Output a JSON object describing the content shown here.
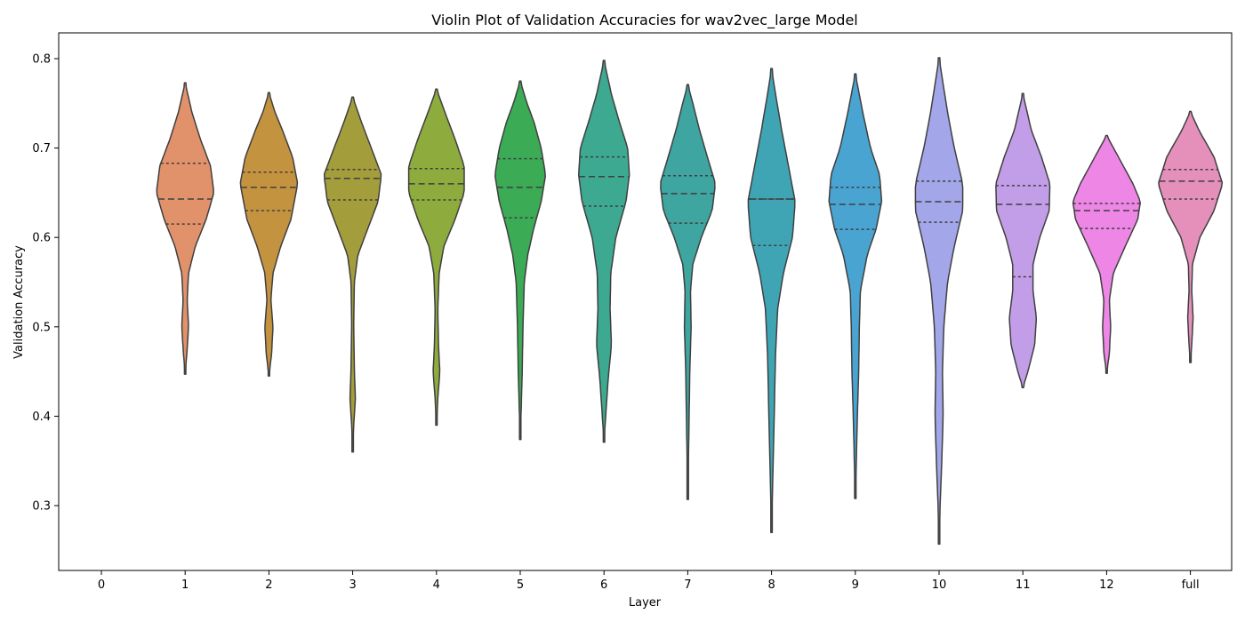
{
  "chart_data": {
    "type": "violin",
    "title": "Violin Plot of Validation Accuracies for wav2vec_large Model",
    "xlabel": "Layer",
    "ylabel": "Validation Accuracy",
    "ylim": [
      0.23,
      0.83
    ],
    "yticks": [
      "0.3",
      "0.4",
      "0.5",
      "0.6",
      "0.7",
      "0.8"
    ],
    "categories": [
      "0",
      "1",
      "2",
      "3",
      "4",
      "5",
      "6",
      "7",
      "8",
      "9",
      "10",
      "11",
      "12",
      "full"
    ],
    "grid": false,
    "legend": "none",
    "inner": "quartile",
    "series": [
      {
        "category": "0",
        "color": "",
        "min": null,
        "max": null,
        "q1": null,
        "median": null,
        "q3": null,
        "peak": null,
        "width": 0,
        "profile": []
      },
      {
        "category": "1",
        "color": "#E1926A",
        "min": 0.447,
        "max": 0.773,
        "q1": 0.615,
        "median": 0.643,
        "q3": 0.683,
        "profile": [
          [
            0.447,
            0.0
          ],
          [
            0.47,
            0.05
          ],
          [
            0.5,
            0.1
          ],
          [
            0.53,
            0.06
          ],
          [
            0.56,
            0.1
          ],
          [
            0.59,
            0.3
          ],
          [
            0.62,
            0.62
          ],
          [
            0.65,
            0.85
          ],
          [
            0.68,
            0.75
          ],
          [
            0.71,
            0.45
          ],
          [
            0.74,
            0.2
          ],
          [
            0.773,
            0.0
          ]
        ]
      },
      {
        "category": "2",
        "color": "#C49340",
        "min": 0.445,
        "max": 0.762,
        "q1": 0.63,
        "median": 0.656,
        "q3": 0.673,
        "profile": [
          [
            0.445,
            0.0
          ],
          [
            0.47,
            0.08
          ],
          [
            0.5,
            0.12
          ],
          [
            0.53,
            0.06
          ],
          [
            0.56,
            0.12
          ],
          [
            0.59,
            0.35
          ],
          [
            0.62,
            0.65
          ],
          [
            0.66,
            0.85
          ],
          [
            0.69,
            0.7
          ],
          [
            0.72,
            0.4
          ],
          [
            0.74,
            0.18
          ],
          [
            0.762,
            0.0
          ]
        ]
      },
      {
        "category": "3",
        "color": "#A39E3B",
        "min": 0.36,
        "max": 0.757,
        "q1": 0.642,
        "median": 0.666,
        "q3": 0.676,
        "profile": [
          [
            0.36,
            0.0
          ],
          [
            0.39,
            0.03
          ],
          [
            0.42,
            0.08
          ],
          [
            0.45,
            0.05
          ],
          [
            0.5,
            0.03
          ],
          [
            0.55,
            0.05
          ],
          [
            0.58,
            0.15
          ],
          [
            0.61,
            0.45
          ],
          [
            0.64,
            0.75
          ],
          [
            0.67,
            0.85
          ],
          [
            0.7,
            0.55
          ],
          [
            0.73,
            0.25
          ],
          [
            0.757,
            0.0
          ]
        ]
      },
      {
        "category": "4",
        "color": "#8EAB3E",
        "min": 0.39,
        "max": 0.766,
        "q1": 0.642,
        "median": 0.66,
        "q3": 0.677,
        "profile": [
          [
            0.39,
            0.0
          ],
          [
            0.42,
            0.04
          ],
          [
            0.45,
            0.1
          ],
          [
            0.48,
            0.06
          ],
          [
            0.52,
            0.04
          ],
          [
            0.56,
            0.08
          ],
          [
            0.59,
            0.22
          ],
          [
            0.62,
            0.55
          ],
          [
            0.65,
            0.82
          ],
          [
            0.68,
            0.82
          ],
          [
            0.71,
            0.55
          ],
          [
            0.74,
            0.25
          ],
          [
            0.766,
            0.0
          ]
        ]
      },
      {
        "category": "5",
        "color": "#3BAB55",
        "min": 0.374,
        "max": 0.775,
        "q1": 0.622,
        "median": 0.656,
        "q3": 0.688,
        "profile": [
          [
            0.374,
            0.0
          ],
          [
            0.41,
            0.03
          ],
          [
            0.45,
            0.06
          ],
          [
            0.5,
            0.08
          ],
          [
            0.55,
            0.12
          ],
          [
            0.58,
            0.22
          ],
          [
            0.61,
            0.4
          ],
          [
            0.64,
            0.62
          ],
          [
            0.67,
            0.75
          ],
          [
            0.7,
            0.62
          ],
          [
            0.73,
            0.4
          ],
          [
            0.75,
            0.2
          ],
          [
            0.775,
            0.0
          ]
        ]
      },
      {
        "category": "6",
        "color": "#3DA990",
        "min": 0.371,
        "max": 0.798,
        "q1": 0.635,
        "median": 0.668,
        "q3": 0.69,
        "profile": [
          [
            0.371,
            0.0
          ],
          [
            0.4,
            0.05
          ],
          [
            0.44,
            0.12
          ],
          [
            0.48,
            0.22
          ],
          [
            0.52,
            0.18
          ],
          [
            0.56,
            0.2
          ],
          [
            0.6,
            0.35
          ],
          [
            0.64,
            0.65
          ],
          [
            0.67,
            0.75
          ],
          [
            0.7,
            0.7
          ],
          [
            0.73,
            0.45
          ],
          [
            0.76,
            0.22
          ],
          [
            0.798,
            0.0
          ]
        ]
      },
      {
        "category": "7",
        "color": "#3EA5A1",
        "min": 0.307,
        "max": 0.771,
        "q1": 0.616,
        "median": 0.649,
        "q3": 0.669,
        "profile": [
          [
            0.307,
            0.0
          ],
          [
            0.35,
            0.02
          ],
          [
            0.4,
            0.04
          ],
          [
            0.45,
            0.06
          ],
          [
            0.5,
            0.1
          ],
          [
            0.54,
            0.08
          ],
          [
            0.57,
            0.15
          ],
          [
            0.6,
            0.4
          ],
          [
            0.63,
            0.72
          ],
          [
            0.66,
            0.82
          ],
          [
            0.69,
            0.58
          ],
          [
            0.72,
            0.35
          ],
          [
            0.75,
            0.15
          ],
          [
            0.771,
            0.0
          ]
        ]
      },
      {
        "category": "8",
        "color": "#3FA5B5",
        "min": 0.27,
        "max": 0.789,
        "q1": 0.591,
        "median": 0.643,
        "q3": 0.643,
        "profile": [
          [
            0.27,
            0.0
          ],
          [
            0.32,
            0.03
          ],
          [
            0.37,
            0.06
          ],
          [
            0.42,
            0.09
          ],
          [
            0.47,
            0.12
          ],
          [
            0.52,
            0.18
          ],
          [
            0.56,
            0.35
          ],
          [
            0.6,
            0.62
          ],
          [
            0.64,
            0.7
          ],
          [
            0.68,
            0.5
          ],
          [
            0.72,
            0.3
          ],
          [
            0.76,
            0.12
          ],
          [
            0.789,
            0.0
          ]
        ]
      },
      {
        "category": "9",
        "color": "#49A4D2",
        "min": 0.308,
        "max": 0.783,
        "q1": 0.609,
        "median": 0.637,
        "q3": 0.656,
        "profile": [
          [
            0.308,
            0.0
          ],
          [
            0.35,
            0.03
          ],
          [
            0.4,
            0.06
          ],
          [
            0.45,
            0.1
          ],
          [
            0.5,
            0.12
          ],
          [
            0.54,
            0.15
          ],
          [
            0.58,
            0.35
          ],
          [
            0.61,
            0.62
          ],
          [
            0.64,
            0.78
          ],
          [
            0.67,
            0.72
          ],
          [
            0.7,
            0.45
          ],
          [
            0.74,
            0.22
          ],
          [
            0.783,
            0.0
          ]
        ]
      },
      {
        "category": "10",
        "color": "#A3A6E8",
        "min": 0.257,
        "max": 0.801,
        "q1": 0.617,
        "median": 0.64,
        "q3": 0.663,
        "profile": [
          [
            0.257,
            0.0
          ],
          [
            0.3,
            0.03
          ],
          [
            0.35,
            0.08
          ],
          [
            0.4,
            0.12
          ],
          [
            0.45,
            0.1
          ],
          [
            0.5,
            0.14
          ],
          [
            0.55,
            0.25
          ],
          [
            0.59,
            0.45
          ],
          [
            0.63,
            0.7
          ],
          [
            0.66,
            0.7
          ],
          [
            0.7,
            0.45
          ],
          [
            0.74,
            0.25
          ],
          [
            0.801,
            0.0
          ]
        ]
      },
      {
        "category": "11",
        "color": "#C39EE8",
        "min": 0.432,
        "max": 0.761,
        "q1": 0.556,
        "median": 0.637,
        "q3": 0.658,
        "profile": [
          [
            0.432,
            0.0
          ],
          [
            0.45,
            0.15
          ],
          [
            0.48,
            0.35
          ],
          [
            0.51,
            0.4
          ],
          [
            0.54,
            0.3
          ],
          [
            0.57,
            0.3
          ],
          [
            0.6,
            0.5
          ],
          [
            0.63,
            0.78
          ],
          [
            0.66,
            0.8
          ],
          [
            0.69,
            0.55
          ],
          [
            0.72,
            0.25
          ],
          [
            0.761,
            0.0
          ]
        ]
      },
      {
        "category": "12",
        "color": "#EE86E6",
        "min": 0.448,
        "max": 0.714,
        "q1": 0.61,
        "median": 0.63,
        "q3": 0.638,
        "profile": [
          [
            0.448,
            0.0
          ],
          [
            0.47,
            0.08
          ],
          [
            0.5,
            0.12
          ],
          [
            0.53,
            0.08
          ],
          [
            0.56,
            0.2
          ],
          [
            0.59,
            0.55
          ],
          [
            0.62,
            0.92
          ],
          [
            0.64,
            1.0
          ],
          [
            0.66,
            0.78
          ],
          [
            0.69,
            0.35
          ],
          [
            0.714,
            0.0
          ]
        ]
      },
      {
        "category": "full",
        "color": "#E490BB",
        "min": 0.46,
        "max": 0.741,
        "q1": 0.643,
        "median": 0.663,
        "q3": 0.676,
        "profile": [
          [
            0.46,
            0.0
          ],
          [
            0.48,
            0.04
          ],
          [
            0.51,
            0.08
          ],
          [
            0.54,
            0.04
          ],
          [
            0.57,
            0.06
          ],
          [
            0.6,
            0.28
          ],
          [
            0.63,
            0.7
          ],
          [
            0.66,
            0.95
          ],
          [
            0.69,
            0.7
          ],
          [
            0.72,
            0.25
          ],
          [
            0.741,
            0.0
          ]
        ]
      }
    ]
  }
}
